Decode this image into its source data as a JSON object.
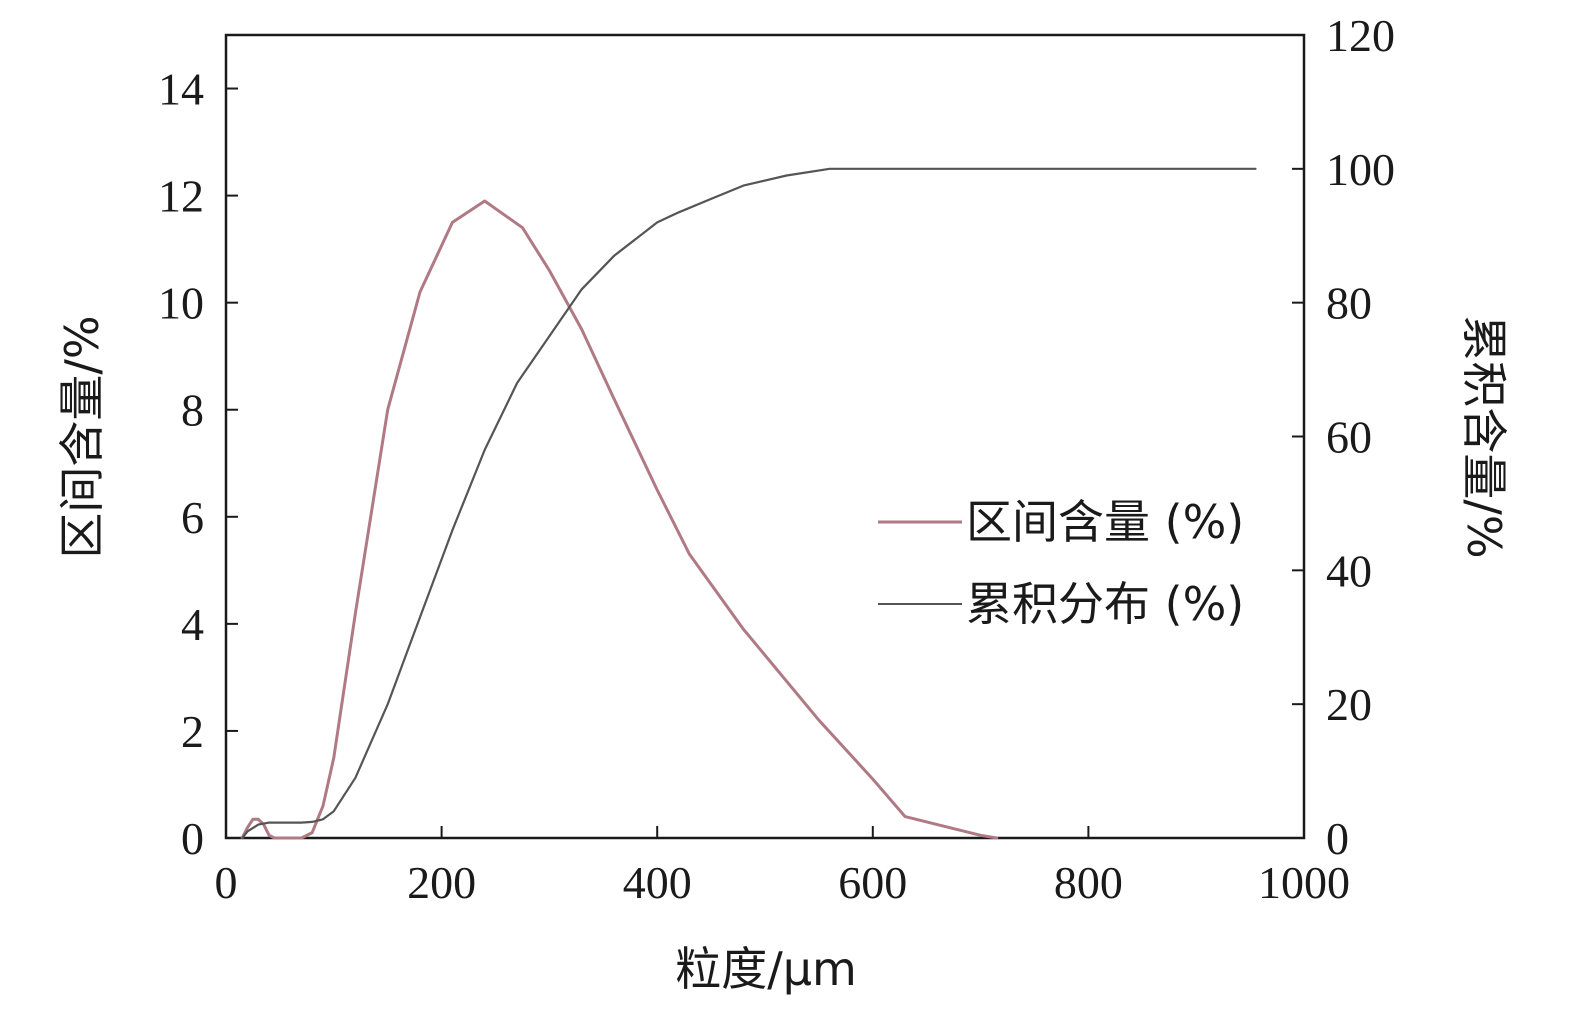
{
  "chart_data": {
    "type": "line",
    "xlabel": "粒度/μm",
    "ylabel_left": "区间含量/%",
    "ylabel_right": "累积含量/%",
    "xlim": [
      0,
      1000
    ],
    "ylim_left": [
      0,
      15
    ],
    "ylim_right": [
      0,
      120
    ],
    "x_ticks": [
      0,
      200,
      400,
      600,
      800,
      1000
    ],
    "y_left_ticks": [
      0,
      2,
      4,
      6,
      8,
      10,
      12,
      14
    ],
    "y_right_ticks": [
      0,
      20,
      40,
      60,
      80,
      100,
      120
    ],
    "grid": false,
    "legend_position": "center-right",
    "series": [
      {
        "name": "区间含量 (%)",
        "axis": "left",
        "color": "#b07a84",
        "x": [
          15,
          20,
          25,
          30,
          35,
          40,
          45,
          50,
          60,
          70,
          80,
          90,
          100,
          120,
          150,
          180,
          210,
          240,
          275,
          300,
          330,
          360,
          400,
          430,
          480,
          550,
          600,
          630,
          670,
          700,
          715
        ],
        "y": [
          0,
          0.2,
          0.35,
          0.35,
          0.25,
          0.05,
          0,
          0,
          0,
          0,
          0.1,
          0.6,
          1.5,
          4.2,
          8.0,
          10.2,
          11.5,
          11.9,
          11.4,
          10.6,
          9.5,
          8.2,
          6.5,
          5.3,
          3.9,
          2.2,
          1.1,
          0.4,
          0.2,
          0.05,
          0
        ]
      },
      {
        "name": "累积分布 (%)",
        "axis": "right",
        "color": "#555555",
        "x": [
          15,
          20,
          30,
          40,
          50,
          60,
          70,
          80,
          90,
          100,
          120,
          150,
          180,
          210,
          240,
          270,
          300,
          330,
          360,
          400,
          420,
          450,
          480,
          520,
          560,
          600,
          700,
          800,
          955
        ],
        "y": [
          0,
          1,
          2,
          2.3,
          2.3,
          2.3,
          2.3,
          2.4,
          2.8,
          4,
          9,
          20,
          33,
          46,
          58,
          68,
          75,
          82,
          87,
          92,
          93.5,
          95.5,
          97.5,
          99,
          100,
          100,
          100,
          100,
          100
        ]
      }
    ]
  }
}
